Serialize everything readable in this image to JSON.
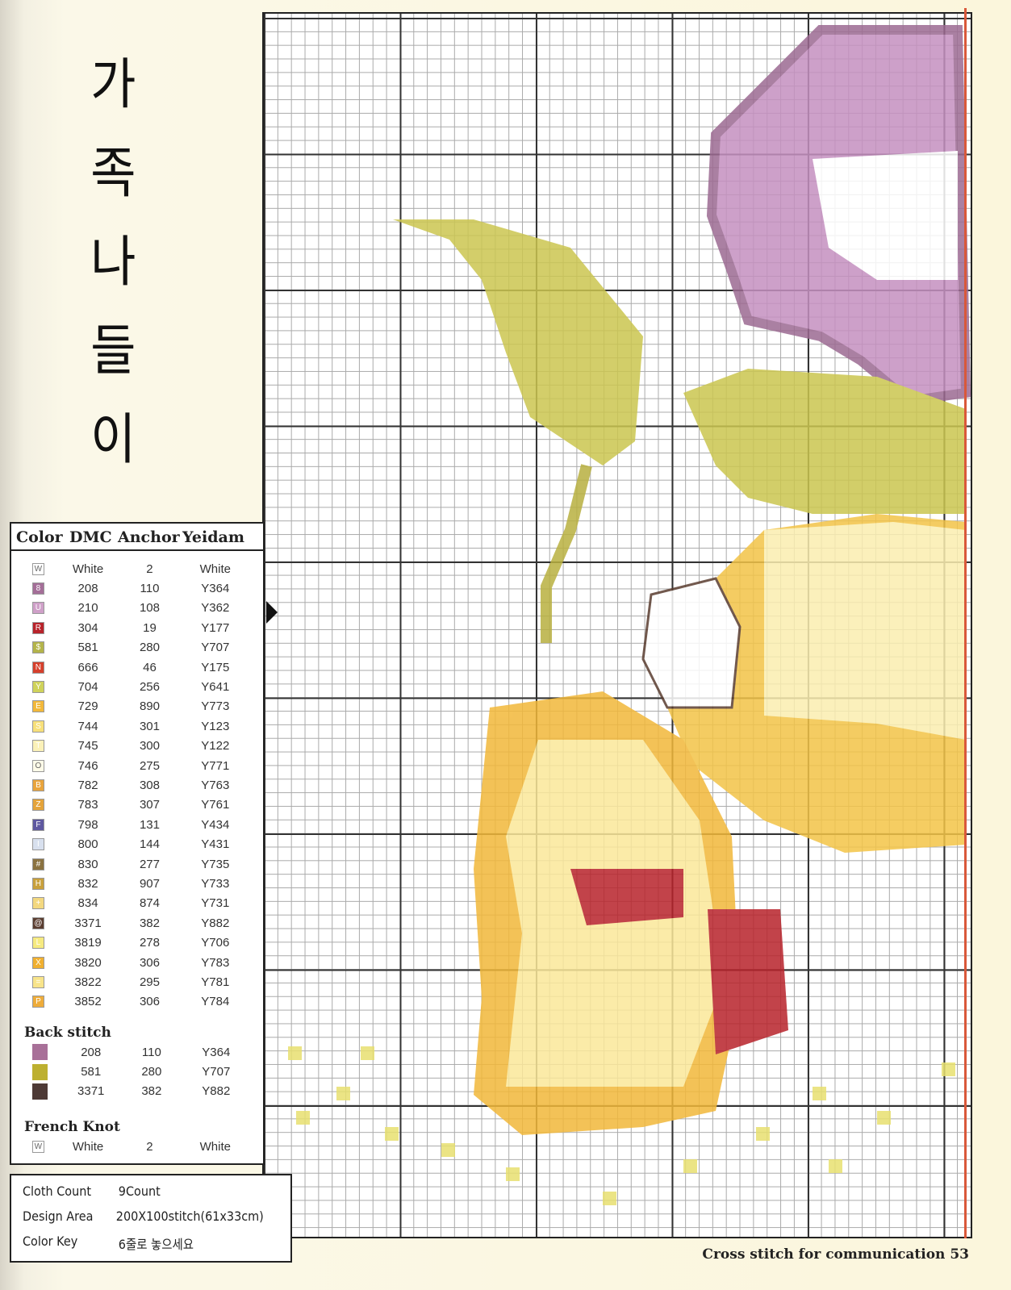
{
  "title": [
    "가",
    "족",
    "나",
    "들",
    "이"
  ],
  "legend": {
    "headers": {
      "color": "Color",
      "dmc": "DMC",
      "anchor": "Anchor",
      "yeidam": "Yeidam"
    },
    "items": [
      {
        "symbol": "W",
        "color": "#ffffff",
        "dmc": "White",
        "anchor": "2",
        "yeidam": "White"
      },
      {
        "symbol": "8",
        "color": "#a46e98",
        "dmc": "208",
        "anchor": "110",
        "yeidam": "Y364"
      },
      {
        "symbol": "U",
        "color": "#cfa0c8",
        "dmc": "210",
        "anchor": "108",
        "yeidam": "Y362"
      },
      {
        "symbol": "R",
        "color": "#b8232b",
        "dmc": "304",
        "anchor": "19",
        "yeidam": "Y177"
      },
      {
        "symbol": "$",
        "color": "#b4b44a",
        "dmc": "581",
        "anchor": "280",
        "yeidam": "Y707"
      },
      {
        "symbol": "N",
        "color": "#d6402c",
        "dmc": "666",
        "anchor": "46",
        "yeidam": "Y175"
      },
      {
        "symbol": "Y",
        "color": "#cfd25a",
        "dmc": "704",
        "anchor": "256",
        "yeidam": "Y641"
      },
      {
        "symbol": "E",
        "color": "#f2b83a",
        "dmc": "729",
        "anchor": "890",
        "yeidam": "Y773"
      },
      {
        "symbol": "S",
        "color": "#f8e07a",
        "dmc": "744",
        "anchor": "301",
        "yeidam": "Y123"
      },
      {
        "symbol": "T",
        "color": "#fbf1b8",
        "dmc": "745",
        "anchor": "300",
        "yeidam": "Y122"
      },
      {
        "symbol": "O",
        "color": "#fffbe8",
        "dmc": "746",
        "anchor": "275",
        "yeidam": "Y771"
      },
      {
        "symbol": "B",
        "color": "#e9a43c",
        "dmc": "782",
        "anchor": "308",
        "yeidam": "Y763"
      },
      {
        "symbol": "Z",
        "color": "#e4a33a",
        "dmc": "783",
        "anchor": "307",
        "yeidam": "Y761"
      },
      {
        "symbol": "F",
        "color": "#5e58a0",
        "dmc": "798",
        "anchor": "131",
        "yeidam": "Y434"
      },
      {
        "symbol": "I",
        "color": "#d8e0ee",
        "dmc": "800",
        "anchor": "144",
        "yeidam": "Y431"
      },
      {
        "symbol": "#",
        "color": "#8a7240",
        "dmc": "830",
        "anchor": "277",
        "yeidam": "Y735"
      },
      {
        "symbol": "H",
        "color": "#c8a03c",
        "dmc": "832",
        "anchor": "907",
        "yeidam": "Y733"
      },
      {
        "symbol": "+",
        "color": "#f3d880",
        "dmc": "834",
        "anchor": "874",
        "yeidam": "Y731"
      },
      {
        "symbol": "@",
        "color": "#5a3d30",
        "dmc": "3371",
        "anchor": "382",
        "yeidam": "Y882"
      },
      {
        "symbol": "L",
        "color": "#f6ea80",
        "dmc": "3819",
        "anchor": "278",
        "yeidam": "Y706"
      },
      {
        "symbol": "X",
        "color": "#f0b030",
        "dmc": "3820",
        "anchor": "306",
        "yeidam": "Y783"
      },
      {
        "symbol": "=",
        "color": "#f8e48a",
        "dmc": "3822",
        "anchor": "295",
        "yeidam": "Y781"
      },
      {
        "symbol": "P",
        "color": "#eeac3a",
        "dmc": "3852",
        "anchor": "306",
        "yeidam": "Y784"
      }
    ],
    "back_stitch": {
      "label": "Back stitch",
      "items": [
        {
          "color": "#a87098",
          "dmc": "208",
          "anchor": "110",
          "yeidam": "Y364"
        },
        {
          "color": "#bdb030",
          "dmc": "581",
          "anchor": "280",
          "yeidam": "Y707"
        },
        {
          "color": "#4e3a36",
          "dmc": "3371",
          "anchor": "382",
          "yeidam": "Y882"
        }
      ]
    },
    "french_knot": {
      "label": "French Knot",
      "items": [
        {
          "symbol": "W",
          "color": "#ffffff",
          "dmc": "White",
          "anchor": "2",
          "yeidam": "White"
        }
      ]
    }
  },
  "info": [
    {
      "key": "Cloth Count",
      "value": "9Count"
    },
    {
      "key": "Design Area",
      "value": "200X100stitch(61x33cm)"
    },
    {
      "key": "Color Key",
      "value": "6줄로 놓으세요"
    }
  ],
  "footer": "Cross stitch for communication 53"
}
